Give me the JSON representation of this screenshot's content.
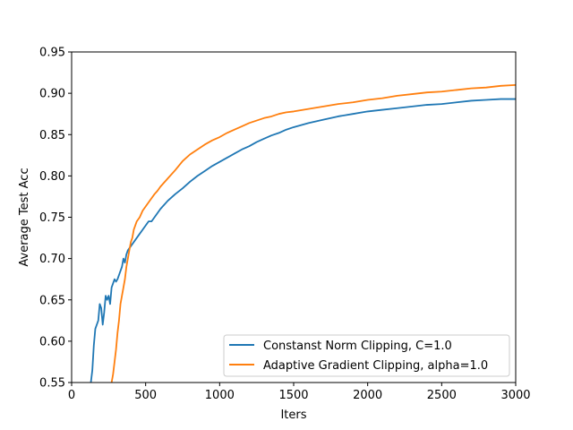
{
  "chart_data": {
    "type": "line",
    "title": "",
    "xlabel": "Iters",
    "ylabel": "Average Test Acc",
    "xlim": [
      0,
      3000
    ],
    "ylim": [
      0.55,
      0.95
    ],
    "x_ticks": [
      0,
      500,
      1000,
      1500,
      2000,
      2500,
      3000
    ],
    "x_tick_labels": [
      "0",
      "500",
      "1000",
      "1500",
      "2000",
      "2500",
      "3000"
    ],
    "y_ticks": [
      0.55,
      0.6,
      0.65,
      0.7,
      0.75,
      0.8,
      0.85,
      0.9,
      0.95
    ],
    "y_tick_labels": [
      "0.55",
      "0.60",
      "0.65",
      "0.70",
      "0.75",
      "0.80",
      "0.85",
      "0.90",
      "0.95"
    ],
    "grid": false,
    "legend_position": "lower-right",
    "series": [
      {
        "name": "Constanst Norm Clipping, C=1.0",
        "color": "#1f77b4",
        "points": [
          [
            130,
            0.55
          ],
          [
            140,
            0.565
          ],
          [
            150,
            0.595
          ],
          [
            160,
            0.615
          ],
          [
            170,
            0.62
          ],
          [
            180,
            0.625
          ],
          [
            190,
            0.645
          ],
          [
            200,
            0.64
          ],
          [
            210,
            0.62
          ],
          [
            220,
            0.635
          ],
          [
            230,
            0.655
          ],
          [
            240,
            0.65
          ],
          [
            250,
            0.655
          ],
          [
            260,
            0.645
          ],
          [
            270,
            0.665
          ],
          [
            280,
            0.67
          ],
          [
            290,
            0.675
          ],
          [
            300,
            0.672
          ],
          [
            310,
            0.675
          ],
          [
            320,
            0.68
          ],
          [
            330,
            0.685
          ],
          [
            340,
            0.69
          ],
          [
            350,
            0.7
          ],
          [
            360,
            0.695
          ],
          [
            370,
            0.705
          ],
          [
            380,
            0.71
          ],
          [
            400,
            0.715
          ],
          [
            420,
            0.72
          ],
          [
            440,
            0.725
          ],
          [
            460,
            0.73
          ],
          [
            480,
            0.735
          ],
          [
            500,
            0.74
          ],
          [
            520,
            0.745
          ],
          [
            540,
            0.745
          ],
          [
            560,
            0.75
          ],
          [
            580,
            0.755
          ],
          [
            600,
            0.76
          ],
          [
            650,
            0.77
          ],
          [
            700,
            0.778
          ],
          [
            750,
            0.785
          ],
          [
            800,
            0.793
          ],
          [
            850,
            0.8
          ],
          [
            900,
            0.806
          ],
          [
            950,
            0.812
          ],
          [
            1000,
            0.817
          ],
          [
            1050,
            0.822
          ],
          [
            1100,
            0.827
          ],
          [
            1150,
            0.832
          ],
          [
            1200,
            0.836
          ],
          [
            1250,
            0.841
          ],
          [
            1300,
            0.845
          ],
          [
            1350,
            0.849
          ],
          [
            1400,
            0.852
          ],
          [
            1450,
            0.856
          ],
          [
            1500,
            0.859
          ],
          [
            1600,
            0.864
          ],
          [
            1700,
            0.868
          ],
          [
            1800,
            0.872
          ],
          [
            1900,
            0.875
          ],
          [
            2000,
            0.878
          ],
          [
            2100,
            0.88
          ],
          [
            2200,
            0.882
          ],
          [
            2300,
            0.884
          ],
          [
            2400,
            0.886
          ],
          [
            2500,
            0.887
          ],
          [
            2600,
            0.889
          ],
          [
            2700,
            0.891
          ],
          [
            2800,
            0.892
          ],
          [
            2900,
            0.893
          ],
          [
            3000,
            0.893
          ]
        ]
      },
      {
        "name": "Adaptive Gradient Clipping, alpha=1.0",
        "color": "#ff7f0e",
        "points": [
          [
            270,
            0.55
          ],
          [
            280,
            0.56
          ],
          [
            290,
            0.575
          ],
          [
            300,
            0.59
          ],
          [
            310,
            0.61
          ],
          [
            320,
            0.625
          ],
          [
            330,
            0.645
          ],
          [
            340,
            0.655
          ],
          [
            350,
            0.665
          ],
          [
            360,
            0.675
          ],
          [
            370,
            0.69
          ],
          [
            380,
            0.7
          ],
          [
            390,
            0.71
          ],
          [
            400,
            0.72
          ],
          [
            410,
            0.725
          ],
          [
            420,
            0.735
          ],
          [
            440,
            0.745
          ],
          [
            460,
            0.75
          ],
          [
            480,
            0.758
          ],
          [
            500,
            0.763
          ],
          [
            520,
            0.768
          ],
          [
            540,
            0.773
          ],
          [
            560,
            0.778
          ],
          [
            580,
            0.782
          ],
          [
            600,
            0.787
          ],
          [
            650,
            0.797
          ],
          [
            700,
            0.807
          ],
          [
            750,
            0.818
          ],
          [
            800,
            0.826
          ],
          [
            850,
            0.832
          ],
          [
            900,
            0.838
          ],
          [
            950,
            0.843
          ],
          [
            1000,
            0.847
          ],
          [
            1050,
            0.852
          ],
          [
            1100,
            0.856
          ],
          [
            1150,
            0.86
          ],
          [
            1200,
            0.864
          ],
          [
            1250,
            0.867
          ],
          [
            1300,
            0.87
          ],
          [
            1350,
            0.872
          ],
          [
            1400,
            0.875
          ],
          [
            1450,
            0.877
          ],
          [
            1500,
            0.878
          ],
          [
            1600,
            0.881
          ],
          [
            1700,
            0.884
          ],
          [
            1800,
            0.887
          ],
          [
            1900,
            0.889
          ],
          [
            2000,
            0.892
          ],
          [
            2100,
            0.894
          ],
          [
            2200,
            0.897
          ],
          [
            2300,
            0.899
          ],
          [
            2400,
            0.901
          ],
          [
            2500,
            0.902
          ],
          [
            2600,
            0.904
          ],
          [
            2700,
            0.906
          ],
          [
            2800,
            0.907
          ],
          [
            2900,
            0.909
          ],
          [
            3000,
            0.91
          ]
        ]
      }
    ]
  }
}
